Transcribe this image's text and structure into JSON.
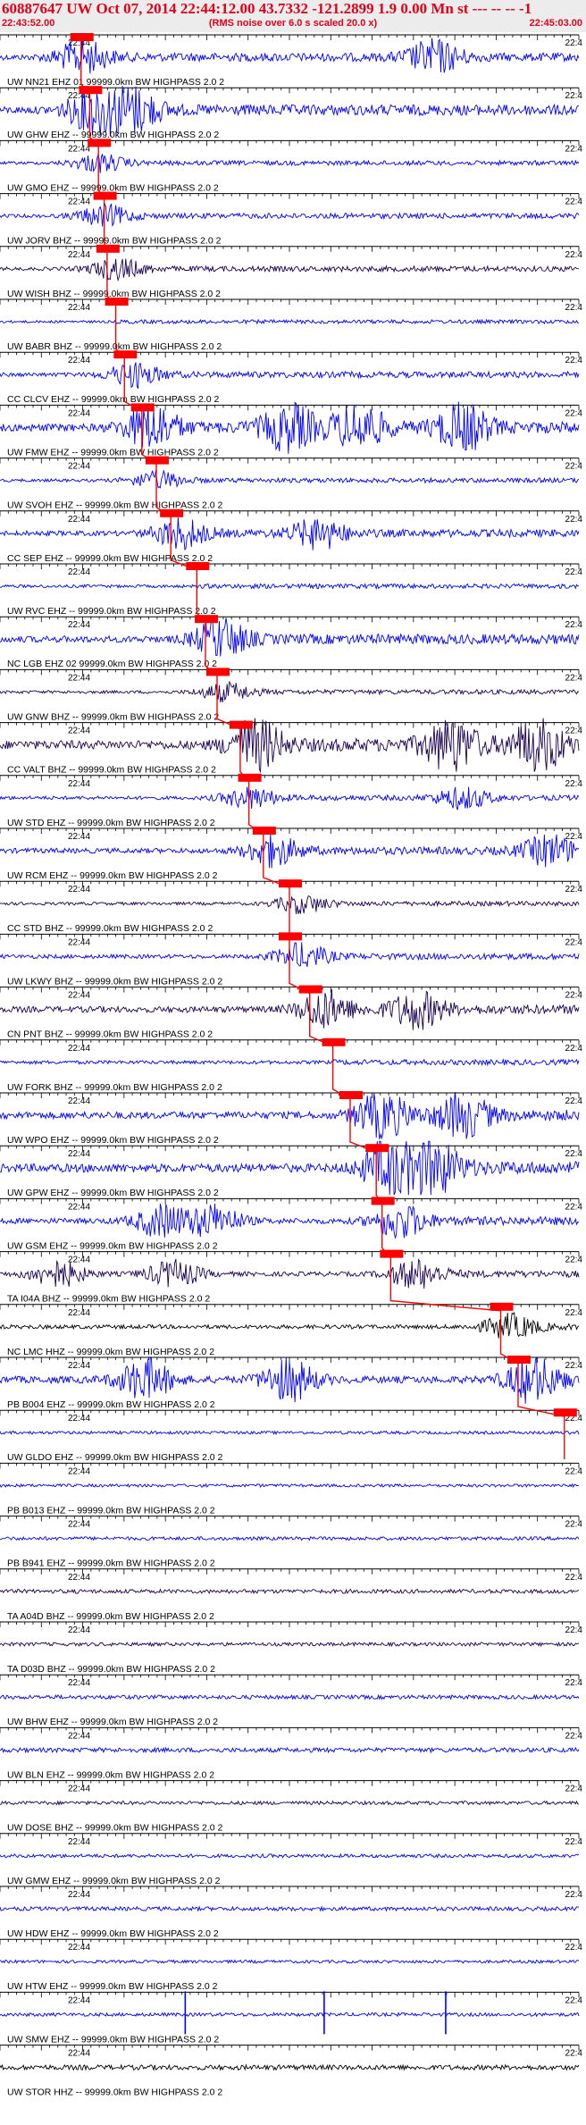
{
  "header": {
    "title": "60887647 UW Oct 07, 2014 22:44:12.00   43.7332 -121.2899  1.9 0.00 Mn st --- -- --  -1",
    "start_time": "22:43:52.00",
    "noise_note": "(RMS noise over 6.0 s scaled 20.0 x)",
    "end_time": "22:45:03.00"
  },
  "chart_data": {
    "type": "line",
    "title": "60887647 UW Oct 07, 2014 22:44:12.00   43.7332 -121.2899  1.9 0.00 Mn st --- -- --  -1",
    "time_start": "22:43:52.00",
    "time_end": "22:45:03.00",
    "tick_label_start": "22:44",
    "tick_label_end": "22:4",
    "grid": false,
    "colors": {
      "trace_blue": "#0000ff",
      "trace_dark": "#1a0050",
      "trace_black": "#000000",
      "pick_red": "#ff0000",
      "label": "#000000",
      "header_red": "#e0001a"
    },
    "stations": [
      {
        "label": "UW NN21 EHZ 01 99999.0km BW  HIGHPASS  2.0  2",
        "pick": 0.14,
        "amp": 0.55,
        "color": "#0000ff",
        "bursts": [
          0.14,
          0.75
        ]
      },
      {
        "label": "UW GHW EHZ -- 99999.0km BW  HIGHPASS  2.0  2",
        "pick": 0.155,
        "amp": 0.7,
        "color": "#0000ff",
        "bursts": [
          0.16,
          0.23
        ]
      },
      {
        "label": "UW GMO EHZ -- 99999.0km BW  HIGHPASS  2.0  2",
        "pick": 0.17,
        "amp": 0.3,
        "color": "#0000ff",
        "bursts": [
          0.17
        ]
      },
      {
        "label": "UW JORV BHZ -- 99999.0km BW  HIGHPASS  2.0  2",
        "pick": 0.18,
        "amp": 0.35,
        "color": "#0000ff",
        "bursts": [
          0.18
        ]
      },
      {
        "label": "UW WISH BHZ -- 99999.0km BW  HIGHPASS  2.0  2",
        "pick": 0.185,
        "amp": 0.35,
        "color": "#1a0050",
        "bursts": [
          0.2
        ]
      },
      {
        "label": "UW BABR BHZ -- 99999.0km BW  HIGHPASS  2.0  2",
        "pick": 0.2,
        "amp": 0.25,
        "color": "#0000ff",
        "bursts": []
      },
      {
        "label": "CC CLCV EHZ -- 99999.0km BW  HIGHPASS  2.0  2",
        "pick": 0.215,
        "amp": 0.4,
        "color": "#0000ff",
        "bursts": [
          0.23
        ]
      },
      {
        "label": "UW FMW EHZ -- 99999.0km BW  HIGHPASS  2.0  2",
        "pick": 0.245,
        "amp": 0.75,
        "color": "#0000ff",
        "bursts": [
          0.26,
          0.5,
          0.62,
          0.8
        ]
      },
      {
        "label": "UW SVOH EHZ -- 99999.0km BW  HIGHPASS  2.0  2",
        "pick": 0.27,
        "amp": 0.3,
        "color": "#0000ff",
        "bursts": [
          0.27
        ]
      },
      {
        "label": "CC SEP EHZ -- 99999.0km BW  HIGHPASS  2.0  2",
        "pick": 0.295,
        "amp": 0.5,
        "color": "#0000ff",
        "bursts": [
          0.31,
          0.55
        ]
      },
      {
        "label": "UW RVC EHZ -- 99999.0km BW  HIGHPASS  2.0  2",
        "pick": 0.34,
        "amp": 0.3,
        "color": "#0000ff",
        "bursts": []
      },
      {
        "label": "NC LGB EHZ 02 99999.0km BW  HIGHPASS  2.0  2",
        "pick": 0.355,
        "amp": 0.65,
        "color": "#0000ff",
        "bursts": [
          0.38
        ]
      },
      {
        "label": "UW GNW BHZ -- 99999.0km BW  HIGHPASS  2.0  2",
        "pick": 0.375,
        "amp": 0.3,
        "color": "#1a0050",
        "bursts": [
          0.39
        ]
      },
      {
        "label": "CC VALT BHZ -- 99999.0km BW  HIGHPASS  2.0  2",
        "pick": 0.415,
        "amp": 0.85,
        "color": "#1a0050",
        "bursts": [
          0.44,
          0.78,
          0.93
        ]
      },
      {
        "label": "UW STD EHZ -- 99999.0km BW  HIGHPASS  2.0  2",
        "pick": 0.43,
        "amp": 0.35,
        "color": "#0000ff",
        "bursts": [
          0.43,
          0.8
        ]
      },
      {
        "label": "UW RCM EHZ -- 99999.0km BW  HIGHPASS  2.0  2",
        "pick": 0.455,
        "amp": 0.5,
        "color": "#0000ff",
        "bursts": [
          0.47,
          0.95
        ]
      },
      {
        "label": "CC STD BHZ -- 99999.0km BW  HIGHPASS  2.0  2",
        "pick": 0.5,
        "amp": 0.3,
        "color": "#1a0050",
        "bursts": [
          0.52
        ]
      },
      {
        "label": "UW LKWY BHZ -- 99999.0km BW  HIGHPASS  2.0  2",
        "pick": 0.5,
        "amp": 0.4,
        "color": "#0000ff",
        "bursts": [
          0.52
        ]
      },
      {
        "label": "CN PNT BHZ -- 99999.0km BW  HIGHPASS  2.0  2",
        "pick": 0.535,
        "amp": 0.6,
        "color": "#1a0050",
        "bursts": [
          0.56,
          0.72
        ]
      },
      {
        "label": "UW FORK BHZ -- 99999.0km BW  HIGHPASS  2.0  2",
        "pick": 0.575,
        "amp": 0.35,
        "color": "#0000ff",
        "bursts": []
      },
      {
        "label": "UW WPO EHZ -- 99999.0km BW  HIGHPASS  2.0  2",
        "pick": 0.605,
        "amp": 0.7,
        "color": "#0000ff",
        "bursts": [
          0.66,
          0.8
        ]
      },
      {
        "label": "UW GPW EHZ -- 99999.0km BW  HIGHPASS  2.0  2",
        "pick": 0.65,
        "amp": 0.85,
        "color": "#0000ff",
        "bursts": [
          0.67,
          0.75
        ]
      },
      {
        "label": "UW GSM EHZ -- 99999.0km BW  HIGHPASS  2.0  2",
        "pick": 0.66,
        "amp": 0.55,
        "color": "#0000ff",
        "bursts": [
          0.28,
          0.37,
          0.69
        ]
      },
      {
        "label": "TA I04A BHZ -- 99999.0km BW  HIGHPASS  2.0  2",
        "pick": 0.675,
        "amp": 0.45,
        "color": "#1a0050",
        "bursts": [
          0.1,
          0.3,
          0.72
        ]
      },
      {
        "label": "NC LMC HHZ -- 99999.0km BW  HIGHPASS  2.0  2",
        "pick": 0.865,
        "amp": 0.4,
        "color": "#000000",
        "bursts": [
          0.88
        ]
      },
      {
        "label": "PB B004 EHZ -- 99999.0km BW  HIGHPASS  2.0  2",
        "pick": 0.895,
        "amp": 0.7,
        "color": "#0000ff",
        "bursts": [
          0.25,
          0.5,
          0.92
        ]
      },
      {
        "label": "UW GLDO EHZ -- 99999.0km BW  HIGHPASS  2.0  2",
        "pick": 0.975,
        "amp": 0.3,
        "color": "#0000ff",
        "bursts": []
      },
      {
        "label": "PB B013 EHZ -- 99999.0km BW  HIGHPASS  2.0  2",
        "pick": null,
        "amp": 0.3,
        "color": "#0000ff",
        "bursts": []
      },
      {
        "label": "PB B941 EHZ -- 99999.0km BW  HIGHPASS  2.0  2",
        "pick": null,
        "amp": 0.35,
        "color": "#0000ff",
        "bursts": []
      },
      {
        "label": "TA A04D BHZ -- 99999.0km BW  HIGHPASS  2.0  2",
        "pick": null,
        "amp": 0.4,
        "color": "#1a0050",
        "bursts": []
      },
      {
        "label": "TA D03D BHZ -- 99999.0km BW  HIGHPASS  2.0  2",
        "pick": null,
        "amp": 0.35,
        "color": "#1a0050",
        "bursts": []
      },
      {
        "label": "UW BHW EHZ -- 99999.0km BW  HIGHPASS  2.0  2",
        "pick": null,
        "amp": 0.4,
        "color": "#0000ff",
        "bursts": []
      },
      {
        "label": "UW BLN EHZ -- 99999.0km BW  HIGHPASS  2.0  2",
        "pick": null,
        "amp": 0.45,
        "color": "#0000ff",
        "bursts": []
      },
      {
        "label": "UW DOSE BHZ -- 99999.0km BW  HIGHPASS  2.0  2",
        "pick": null,
        "amp": 0.35,
        "color": "#1a0050",
        "bursts": []
      },
      {
        "label": "UW GMW EHZ -- 99999.0km BW  HIGHPASS  2.0  2",
        "pick": null,
        "amp": 0.35,
        "color": "#0000ff",
        "bursts": []
      },
      {
        "label": "UW HDW EHZ -- 99999.0km BW  HIGHPASS  2.0  2",
        "pick": null,
        "amp": 0.4,
        "color": "#0000ff",
        "bursts": []
      },
      {
        "label": "UW HTW EHZ -- 99999.0km BW  HIGHPASS  2.0  2",
        "pick": null,
        "amp": 0.3,
        "color": "#0000ff",
        "bursts": []
      },
      {
        "label": "UW SMW EHZ -- 99999.0km BW  HIGHPASS  2.0  2",
        "pick": null,
        "amp": 0.35,
        "color": "#0000ff",
        "spikes": [
          0.32,
          0.56,
          0.77
        ]
      },
      {
        "label": "UW STOR HHZ -- 99999.0km BW  HIGHPASS  2.0  2",
        "pick": null,
        "amp": 0.5,
        "color": "#000000",
        "bursts": []
      }
    ]
  }
}
